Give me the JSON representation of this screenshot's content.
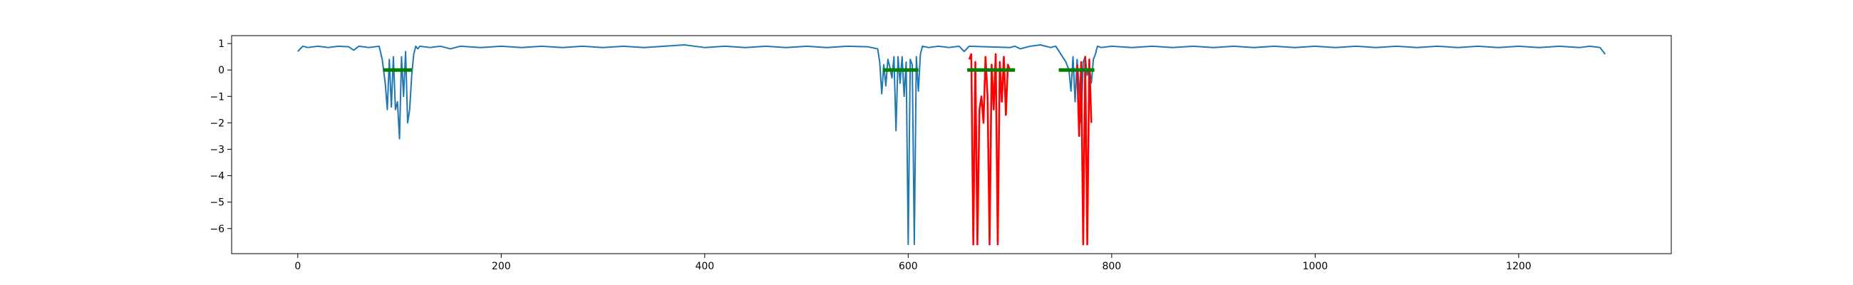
{
  "chart_data": {
    "type": "line",
    "title": "",
    "xlabel": "",
    "ylabel": "",
    "xlim": [
      -65,
      1350
    ],
    "ylim": [
      -6.95,
      1.3
    ],
    "xticks": [
      0,
      200,
      400,
      600,
      800,
      1000,
      1200
    ],
    "yticks": [
      1,
      0,
      -1,
      -2,
      -3,
      -4,
      -5,
      -6
    ],
    "xtick_labels": [
      "0",
      "200",
      "400",
      "600",
      "800",
      "1000",
      "1200"
    ],
    "ytick_labels": [
      "1",
      "0",
      "−1",
      "−2",
      "−3",
      "−4",
      "−5",
      "−6"
    ],
    "grid": false,
    "legend": "none",
    "series": [
      {
        "color": "#1f77b4",
        "style": "line",
        "x": [
          0,
          5,
          10,
          20,
          30,
          40,
          50,
          55,
          60,
          70,
          80,
          83,
          86,
          88,
          90,
          92,
          94,
          96,
          98,
          100,
          102,
          104,
          106,
          108,
          110,
          112,
          114,
          116,
          118,
          120,
          130,
          140,
          150,
          160,
          180,
          200,
          220,
          240,
          260,
          280,
          300,
          320,
          340,
          360,
          380,
          400,
          420,
          440,
          460,
          480,
          500,
          520,
          540,
          560,
          570,
          572,
          574,
          576,
          578,
          580,
          582,
          584,
          586,
          588,
          590,
          592,
          594,
          596,
          598,
          600,
          602,
          604,
          606,
          608,
          610,
          612,
          614,
          620,
          630,
          640,
          650,
          655,
          660,
          700,
          705,
          710,
          720,
          730,
          740,
          745,
          750,
          755,
          758,
          760,
          762,
          764,
          766,
          768,
          770,
          772,
          774,
          776,
          778,
          780,
          782,
          784,
          786,
          790,
          800,
          820,
          840,
          860,
          880,
          900,
          920,
          940,
          960,
          980,
          1000,
          1020,
          1040,
          1060,
          1080,
          1100,
          1120,
          1140,
          1160,
          1180,
          1200,
          1220,
          1240,
          1260,
          1270,
          1280,
          1285
        ],
        "y": [
          0.7,
          0.9,
          0.85,
          0.9,
          0.85,
          0.9,
          0.88,
          0.75,
          0.9,
          0.85,
          0.9,
          0.4,
          -0.5,
          -1.5,
          0.4,
          -1.4,
          0.5,
          -1.5,
          -1.2,
          -2.6,
          0.5,
          -1.0,
          0.7,
          -2.0,
          -1.5,
          -0.2,
          0.6,
          0.9,
          0.8,
          0.9,
          0.85,
          0.9,
          0.8,
          0.9,
          0.85,
          0.9,
          0.85,
          0.9,
          0.85,
          0.9,
          0.85,
          0.9,
          0.85,
          0.9,
          0.95,
          0.85,
          0.9,
          0.85,
          0.9,
          0.85,
          0.9,
          0.85,
          0.9,
          0.88,
          0.8,
          0.3,
          -0.9,
          0.2,
          -0.6,
          0.4,
          0.1,
          -0.3,
          0.5,
          -2.3,
          0.5,
          -0.5,
          0.5,
          -1.0,
          0.3,
          -6.6,
          0.4,
          0.2,
          -6.6,
          0.5,
          -0.8,
          0.6,
          0.9,
          0.85,
          0.9,
          0.85,
          0.9,
          0.7,
          0.9,
          0.85,
          0.9,
          0.8,
          0.9,
          0.95,
          0.85,
          0.9,
          0.6,
          0.3,
          0.0,
          -0.8,
          0.5,
          -1.2,
          0.4,
          -0.6,
          -2.0,
          0.3,
          0.5,
          -0.2,
          0.1,
          -0.5,
          0.4,
          0.6,
          0.9,
          0.85,
          0.9,
          0.85,
          0.9,
          0.85,
          0.9,
          0.85,
          0.9,
          0.85,
          0.9,
          0.85,
          0.9,
          0.85,
          0.9,
          0.85,
          0.9,
          0.85,
          0.9,
          0.85,
          0.9,
          0.85,
          0.9,
          0.85,
          0.9,
          0.85,
          0.9,
          0.85,
          0.6
        ]
      },
      {
        "color": "#ff0000",
        "style": "line",
        "x": [
          660,
          662,
          664,
          666,
          668,
          670,
          672,
          674,
          676,
          678,
          680,
          682,
          684,
          686,
          688,
          690,
          692,
          694,
          696,
          698,
          700
        ],
        "y": [
          0.4,
          0.6,
          -6.6,
          0.3,
          -6.6,
          -1.5,
          -1.0,
          -2.0,
          0.5,
          -1.0,
          -6.6,
          0.2,
          -1.5,
          0.6,
          -6.6,
          0.3,
          -1.2,
          0.5,
          -1.7,
          0.2,
          0.0
        ]
      },
      {
        "color": "#ff0000",
        "style": "line",
        "x": [
          766,
          768,
          770,
          772,
          774,
          776,
          778,
          780
        ],
        "y": [
          0.2,
          -2.5,
          0.3,
          -6.6,
          0.5,
          -6.6,
          0.4,
          -2.0
        ]
      },
      {
        "color": "#008000",
        "style": "thick-line",
        "segments": [
          [
            84,
            112
          ],
          [
            575,
            610
          ],
          [
            658,
            705
          ],
          [
            748,
            783
          ]
        ],
        "y": 0
      }
    ]
  }
}
